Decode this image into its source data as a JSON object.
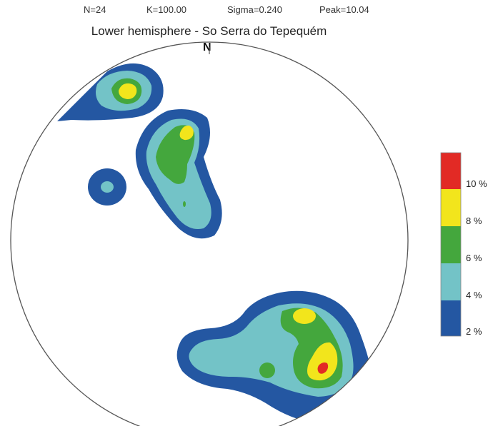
{
  "stats": {
    "n": "N=24",
    "k": "K=100.00",
    "sigma": "Sigma=0.240",
    "peak": "Peak=10.04"
  },
  "title": "Lower hemisphere - So Serra do Tepequém",
  "north_label": "N",
  "colors": {
    "level_2": "#2457a2",
    "level_4": "#73c3c7",
    "level_6": "#44a73d",
    "level_8": "#f2e51c",
    "level_10": "#e22a25",
    "outline": "#555555"
  },
  "legend": [
    {
      "label": "10 %",
      "color": "#e22a25"
    },
    {
      "label": "8 %",
      "color": "#f2e51c"
    },
    {
      "label": "6 %",
      "color": "#44a73d"
    },
    {
      "label": "4 %",
      "color": "#73c3c7"
    },
    {
      "label": "2 %",
      "color": "#2457a2"
    }
  ]
}
